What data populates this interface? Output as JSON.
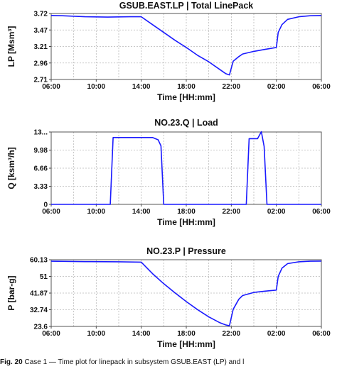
{
  "chart_data": [
    {
      "type": "line",
      "title": "GSUB.EAST.LP | Total LinePack",
      "xlabel": "Time [HH:mm]",
      "ylabel": "LP [Msm³]",
      "xlim": [
        "06:00",
        "06:00 (+1 day)"
      ],
      "ylim": [
        2.71,
        3.72
      ],
      "x_ticks": [
        "06:00",
        "10:00",
        "14:00",
        "18:00",
        "22:00",
        "02:00",
        "06:00"
      ],
      "y_ticks": [
        "3.72",
        "3.47",
        "3.21",
        "2.96",
        "2.71"
      ],
      "grid": true,
      "line_color": "#1a1aff",
      "series": [
        {
          "x": [
            "06:00",
            "07:00",
            "09:00",
            "11:00",
            "13:00",
            "14:00",
            "15:00",
            "16:00",
            "17:00",
            "18:00",
            "19:00",
            "20:00",
            "21:00",
            "21:30",
            "21:50",
            "22:10",
            "22:40",
            "23:00",
            "00:00",
            "01:00",
            "02:00",
            "02:10",
            "02:30",
            "03:00",
            "04:00",
            "05:00",
            "06:00"
          ],
          "values": [
            3.69,
            3.685,
            3.67,
            3.665,
            3.67,
            3.67,
            3.55,
            3.43,
            3.31,
            3.2,
            3.08,
            2.98,
            2.86,
            2.8,
            2.78,
            2.99,
            3.06,
            3.1,
            3.14,
            3.17,
            3.2,
            3.43,
            3.55,
            3.63,
            3.67,
            3.685,
            3.69
          ]
        }
      ]
    },
    {
      "type": "line",
      "title": "NO.23.Q | Load",
      "xlabel": "Time [HH:mm]",
      "ylabel": "Q [ksm³/h]",
      "xlim": [
        "06:00",
        "06:00 (+1 day)"
      ],
      "ylim": [
        0,
        13
      ],
      "x_ticks": [
        "06:00",
        "10:00",
        "14:00",
        "18:00",
        "22:00",
        "02:00",
        "06:00"
      ],
      "y_ticks": [
        "13...",
        "9.98",
        "6.66",
        "3.33",
        "0"
      ],
      "grid": true,
      "line_color": "#1a1aff",
      "series": [
        {
          "x": [
            "06:00",
            "11:15",
            "11:30",
            "12:00",
            "14:00",
            "15:00",
            "15:30",
            "15:45",
            "16:00",
            "16:10",
            "23:20",
            "23:35",
            "23:45",
            "00:20",
            "00:40",
            "00:55",
            "01:10",
            "01:20",
            "01:30",
            "06:00"
          ],
          "values": [
            0,
            0,
            12,
            12,
            12,
            12,
            11.6,
            10.5,
            0,
            0,
            0,
            11.8,
            11.8,
            11.8,
            13.05,
            10.4,
            0,
            0,
            0,
            0
          ]
        }
      ]
    },
    {
      "type": "line",
      "title": "NO.23.P | Pressure",
      "xlabel": "Time [HH:mm]",
      "ylabel": "P [bar-g]",
      "xlim": [
        "06:00",
        "06:00 (+1 day)"
      ],
      "ylim": [
        23.6,
        60.13
      ],
      "x_ticks": [
        "06:00",
        "10:00",
        "14:00",
        "18:00",
        "22:00",
        "02:00",
        "06:00"
      ],
      "y_ticks": [
        "60.13",
        "51",
        "41.87",
        "32.74",
        "23.6"
      ],
      "grid": true,
      "line_color": "#1a1aff",
      "series": [
        {
          "x": [
            "06:00",
            "09:00",
            "12:00",
            "14:00",
            "15:00",
            "16:00",
            "17:00",
            "18:00",
            "19:00",
            "20:00",
            "21:00",
            "21:30",
            "21:50",
            "22:10",
            "22:40",
            "23:00",
            "00:00",
            "01:00",
            "02:00",
            "02:10",
            "02:30",
            "03:00",
            "04:00",
            "05:00",
            "06:00"
          ],
          "values": [
            59.3,
            59.1,
            59.0,
            58.8,
            52.5,
            47.0,
            42.0,
            37.2,
            32.8,
            28.8,
            25.6,
            24.4,
            24.0,
            33.0,
            38.5,
            40.5,
            42.2,
            42.9,
            43.5,
            51.0,
            55.5,
            58.0,
            59.0,
            59.3,
            59.4
          ]
        }
      ]
    }
  ],
  "caption": {
    "label": "Fig. 20",
    "text": "Case 1 — Time plot for linepack in subsystem GSUB.EAST (LP) and l"
  }
}
